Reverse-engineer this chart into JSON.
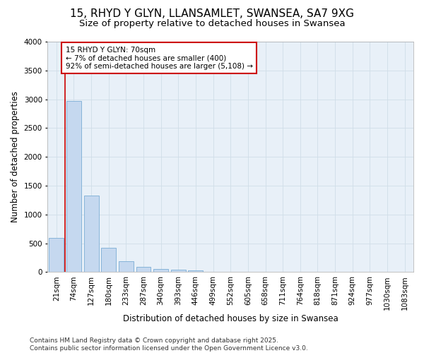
{
  "title_line1": "15, RHYD Y GLYN, LLANSAMLET, SWANSEA, SA7 9XG",
  "title_line2": "Size of property relative to detached houses in Swansea",
  "xlabel": "Distribution of detached houses by size in Swansea",
  "ylabel": "Number of detached properties",
  "categories": [
    "21sqm",
    "74sqm",
    "127sqm",
    "180sqm",
    "233sqm",
    "287sqm",
    "340sqm",
    "393sqm",
    "446sqm",
    "499sqm",
    "552sqm",
    "605sqm",
    "658sqm",
    "711sqm",
    "764sqm",
    "818sqm",
    "871sqm",
    "924sqm",
    "977sqm",
    "1030sqm",
    "1083sqm"
  ],
  "values": [
    590,
    2970,
    1330,
    420,
    185,
    90,
    55,
    40,
    30,
    0,
    0,
    0,
    0,
    0,
    0,
    0,
    0,
    0,
    0,
    0,
    0
  ],
  "bar_color": "#c5d8ef",
  "bar_edge_color": "#7badd4",
  "vline_color": "#cc0000",
  "vline_x": 0.5,
  "annotation_text": "15 RHYD Y GLYN: 70sqm\n← 7% of detached houses are smaller (400)\n92% of semi-detached houses are larger (5,108) →",
  "annotation_box_facecolor": "#ffffff",
  "annotation_box_edgecolor": "#cc0000",
  "ylim": [
    0,
    4000
  ],
  "yticks": [
    0,
    500,
    1000,
    1500,
    2000,
    2500,
    3000,
    3500,
    4000
  ],
  "grid_color": "#d0dde8",
  "background_color": "#ffffff",
  "plot_bg_color": "#e8f0f8",
  "title_fontsize": 11,
  "subtitle_fontsize": 9.5,
  "axis_label_fontsize": 8.5,
  "tick_fontsize": 7.5,
  "annotation_fontsize": 7.5,
  "footer_fontsize": 6.5,
  "footer_text": "Contains HM Land Registry data © Crown copyright and database right 2025.\nContains public sector information licensed under the Open Government Licence v3.0."
}
